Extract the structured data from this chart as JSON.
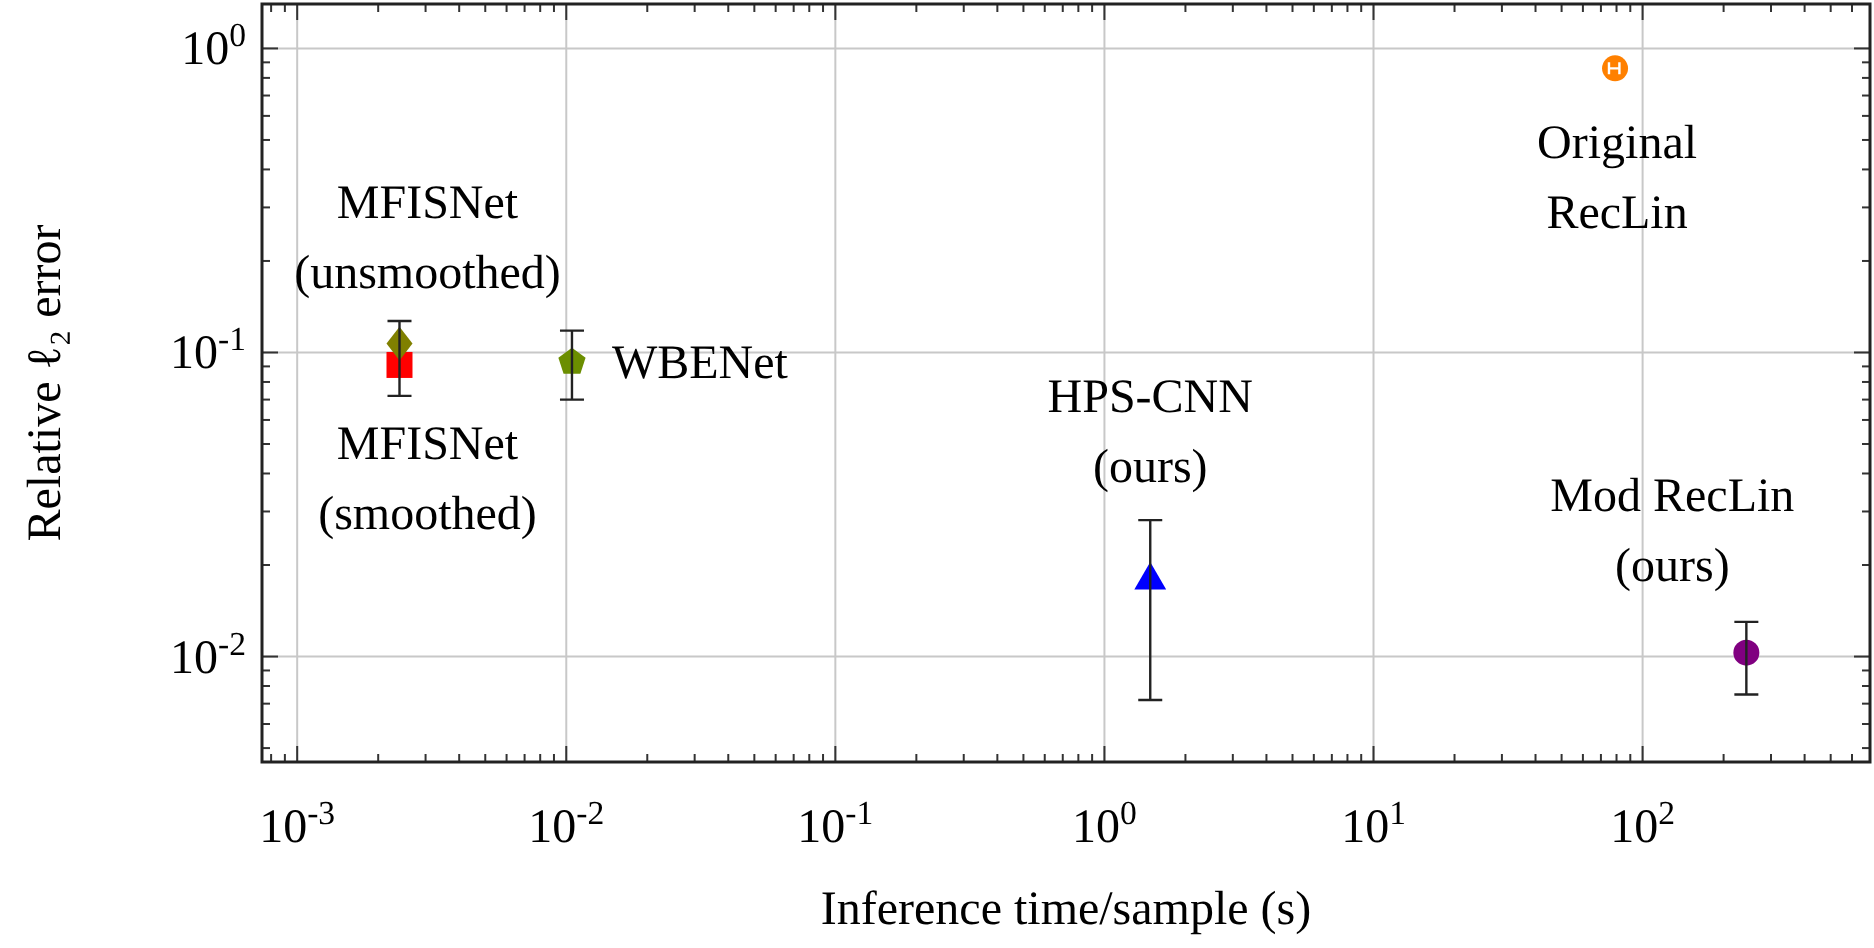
{
  "chart_data": {
    "type": "scatter",
    "xlabel": "Inference time/sample (s)",
    "ylabel": "Relative ℓ₂ error",
    "log": "xy",
    "grid": true,
    "xlim": [
      0.00074,
      700
    ],
    "ylim": [
      0.0045,
      1.4
    ],
    "xticks": [
      {
        "value": 0.0008,
        "label": null
      },
      {
        "value": 0.0009,
        "label": null
      },
      {
        "value": 0.001,
        "label": "10$^{-3}$"
      },
      {
        "value": 0.002,
        "label": null
      },
      {
        "value": 0.003,
        "label": null
      },
      {
        "value": 0.004,
        "label": null
      },
      {
        "value": 0.005,
        "label": null
      },
      {
        "value": 0.006,
        "label": null
      },
      {
        "value": 0.007,
        "label": null
      },
      {
        "value": 0.008,
        "label": null
      },
      {
        "value": 0.009,
        "label": null
      },
      {
        "value": 0.01,
        "label": "10$^{-2}$"
      },
      {
        "value": 0.02,
        "label": null
      },
      {
        "value": 0.03,
        "label": null
      },
      {
        "value": 0.04,
        "label": null
      },
      {
        "value": 0.05,
        "label": null
      },
      {
        "value": 0.06,
        "label": null
      },
      {
        "value": 0.07,
        "label": null
      },
      {
        "value": 0.08,
        "label": null
      },
      {
        "value": 0.09,
        "label": null
      },
      {
        "value": 0.1,
        "label": "10$^{-1}$"
      },
      {
        "value": 0.2,
        "label": null
      },
      {
        "value": 0.3,
        "label": null
      },
      {
        "value": 0.4,
        "label": null
      },
      {
        "value": 0.5,
        "label": null
      },
      {
        "value": 0.6,
        "label": null
      },
      {
        "value": 0.7,
        "label": null
      },
      {
        "value": 0.8,
        "label": null
      },
      {
        "value": 0.9,
        "label": null
      },
      {
        "value": 1,
        "label": "10$^{0}$"
      },
      {
        "value": 2,
        "label": null
      },
      {
        "value": 3,
        "label": null
      },
      {
        "value": 4,
        "label": null
      },
      {
        "value": 5,
        "label": null
      },
      {
        "value": 6,
        "label": null
      },
      {
        "value": 7,
        "label": null
      },
      {
        "value": 8,
        "label": null
      },
      {
        "value": 9,
        "label": null
      },
      {
        "value": 10,
        "label": "10$^{1}$"
      },
      {
        "value": 20,
        "label": null
      },
      {
        "value": 30,
        "label": null
      },
      {
        "value": 40,
        "label": null
      },
      {
        "value": 50,
        "label": null
      },
      {
        "value": 60,
        "label": null
      },
      {
        "value": 70,
        "label": null
      },
      {
        "value": 80,
        "label": null
      },
      {
        "value": 90,
        "label": null
      },
      {
        "value": 100,
        "label": "10$^{2}$"
      },
      {
        "value": 200,
        "label": null
      },
      {
        "value": 300,
        "label": null
      },
      {
        "value": 400,
        "label": null
      },
      {
        "value": 500,
        "label": null
      },
      {
        "value": 600,
        "label": null
      }
    ],
    "yticks": [
      {
        "value": 0.005,
        "label": null
      },
      {
        "value": 0.006,
        "label": null
      },
      {
        "value": 0.007,
        "label": null
      },
      {
        "value": 0.008,
        "label": null
      },
      {
        "value": 0.009,
        "label": null
      },
      {
        "value": 0.01,
        "label": "10$^{-2}$"
      },
      {
        "value": 0.02,
        "label": null
      },
      {
        "value": 0.03,
        "label": null
      },
      {
        "value": 0.04,
        "label": null
      },
      {
        "value": 0.05,
        "label": null
      },
      {
        "value": 0.06,
        "label": null
      },
      {
        "value": 0.07,
        "label": null
      },
      {
        "value": 0.08,
        "label": null
      },
      {
        "value": 0.09,
        "label": null
      },
      {
        "value": 0.1,
        "label": "10$^{-1}$"
      },
      {
        "value": 0.2,
        "label": null
      },
      {
        "value": 0.3,
        "label": null
      },
      {
        "value": 0.4,
        "label": null
      },
      {
        "value": 0.5,
        "label": null
      },
      {
        "value": 0.6,
        "label": null
      },
      {
        "value": 0.7,
        "label": null
      },
      {
        "value": 0.8,
        "label": null
      },
      {
        "value": 0.9,
        "label": null
      },
      {
        "value": 1,
        "label": "10$^{0}$"
      }
    ],
    "series": [
      {
        "name": "MFISNet\n(smoothed)",
        "color": "#ff0000",
        "marker": "square",
        "x": [
          0.0024
        ],
        "values": [
          0.091
        ]
      },
      {
        "name": "MFISNet\n(unsmoothed)",
        "color": "#808000",
        "marker": "diamond",
        "x": [
          0.0024
        ],
        "values": [
          0.107
        ],
        "errors": [
          [
            0.072,
            0.127
          ]
        ]
      },
      {
        "name": "WBENet",
        "color": "#6b8e00",
        "x": [
          0.0105
        ],
        "values": [
          0.093
        ],
        "errors": [
          [
            0.07,
            0.118
          ]
        ]
      },
      {
        "name": "HPS-CNN\n(ours)",
        "color": "#0000ff",
        "marker": "triangle",
        "x": [
          1.48
        ],
        "values": [
          0.0178
        ],
        "errors": [
          [
            0.0072,
            0.0281
          ]
        ]
      },
      {
        "name": "Original\nRecLin",
        "color": "#ff8000",
        "marker": "circle",
        "x": [
          79
        ],
        "values": [
          0.86
        ],
        "xerrors": [
          [
            75,
            82
          ]
        ]
      },
      {
        "name": "Mod RecLin\n(ours)",
        "color": "#800080",
        "marker": "circle",
        "x": [
          243
        ],
        "values": [
          0.0103
        ],
        "errors": [
          [
            0.0075,
            0.013
          ]
        ]
      }
    ]
  }
}
